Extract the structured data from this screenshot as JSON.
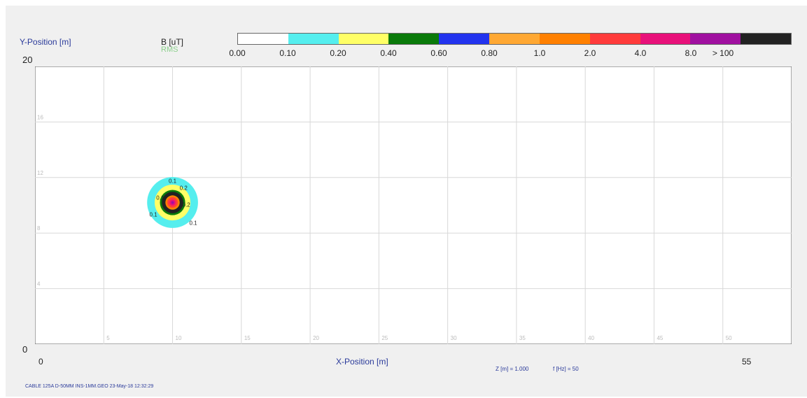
{
  "chart_data": {
    "type": "heatmap",
    "title": "",
    "xlabel": "X-Position [m]",
    "ylabel": "Y-Position [m]",
    "xlim": [
      0,
      55
    ],
    "ylim": [
      0,
      20
    ],
    "x_range_labels": [
      "0",
      "55"
    ],
    "y_range_labels": [
      "0",
      "20"
    ],
    "x_ticks": [
      5,
      10,
      15,
      20,
      25,
      30,
      35,
      40,
      45,
      50
    ],
    "x_tick_labels": [
      "5",
      "10",
      "15",
      "20",
      "25",
      "30",
      "35",
      "40",
      "45",
      "50"
    ],
    "y_ticks": [
      4,
      8,
      12,
      16
    ],
    "y_tick_labels": [
      "4",
      "8",
      "12",
      "16"
    ],
    "grid": true,
    "legend": {
      "unit_label": "B [uT]",
      "mode_label": "RMS",
      "placement": "top",
      "colors": [
        "#ffffff",
        "#55eeee",
        "#ffff66",
        "#0a7a0a",
        "#2233ee",
        "#ffa833",
        "#ff8000",
        "#ff3b3b",
        "#e8117a",
        "#a010a0",
        "#222222"
      ],
      "tick_labels": [
        "0.00",
        "0.10",
        "0.20",
        "0.40",
        "0.60",
        "0.80",
        "1.0",
        "2.0",
        "4.0",
        "8.0",
        "> 100"
      ]
    },
    "source": {
      "x": 10,
      "y": 10.2
    },
    "contour_labels": [
      {
        "text": "0.1",
        "x": 10.0,
        "y": 11.6
      },
      {
        "text": "0.2",
        "x": 10.8,
        "y": 11.1
      },
      {
        "text": "0.1",
        "x": 9.1,
        "y": 10.4
      },
      {
        "text": "0.2",
        "x": 11.0,
        "y": 9.9
      },
      {
        "text": "0.1",
        "x": 8.6,
        "y": 9.2
      },
      {
        "text": "0.1",
        "x": 11.5,
        "y": 8.6
      }
    ],
    "parameters": {
      "z_text": "Z [m] = 1.000",
      "f_text": "f [Hz] = 50"
    },
    "footer": "CABLE 125A D-50MM INS-1MM.GEO 23-May-18 12:32:29"
  }
}
